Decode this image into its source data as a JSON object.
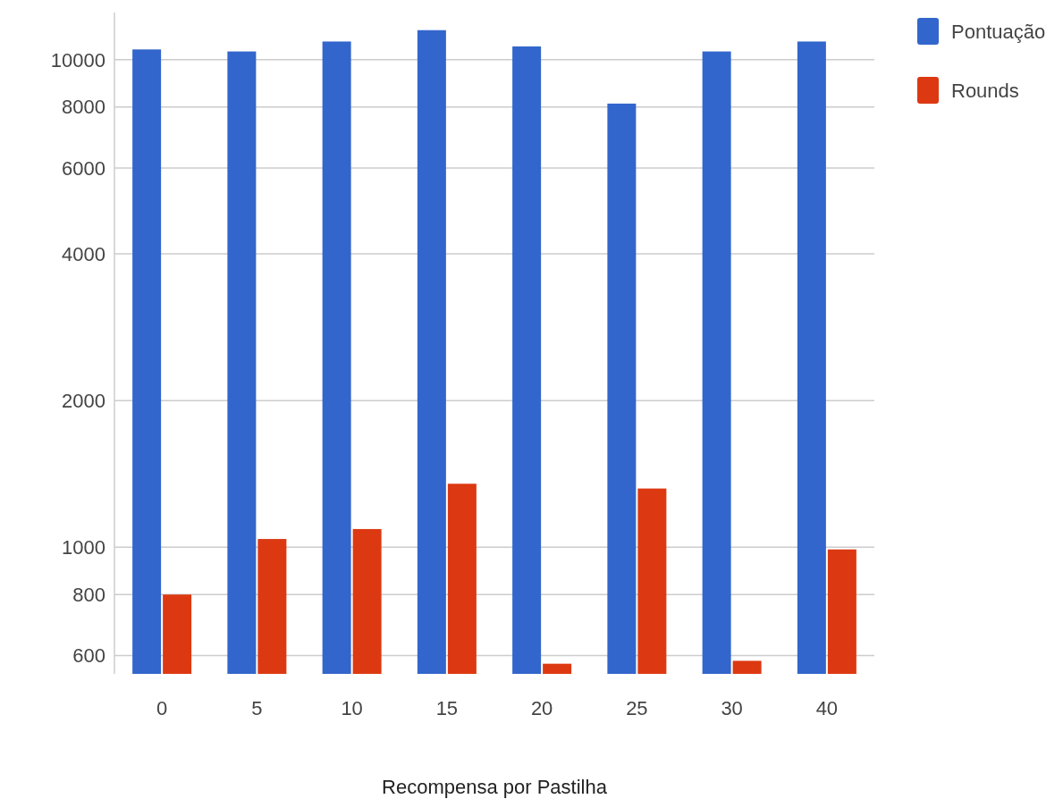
{
  "chart_data": {
    "type": "bar",
    "xlabel": "Recompensa por Pastilha",
    "categories": [
      "0",
      "5",
      "10",
      "15",
      "20",
      "25",
      "30",
      "40"
    ],
    "series": [
      {
        "name": "Pontuação",
        "color": "#3366cc",
        "values": [
          10500,
          10400,
          10900,
          11500,
          10650,
          8130,
          10400,
          10900
        ]
      },
      {
        "name": "Rounds",
        "color": "#dc3912",
        "values": [
          800,
          1040,
          1090,
          1350,
          577,
          1320,
          585,
          990
        ]
      }
    ],
    "log": true,
    "ylim": [
      550,
      12500
    ],
    "yticks": [
      600,
      800,
      1000,
      2000,
      4000,
      6000,
      8000,
      10000
    ],
    "grid": "y",
    "legend": "top right"
  }
}
